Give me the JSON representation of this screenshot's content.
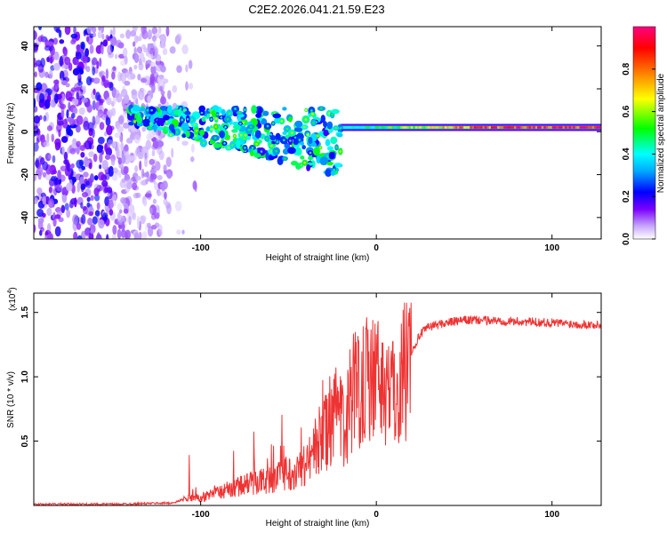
{
  "title": "C2E2.2026.041.21.59.E23",
  "chart_data": [
    {
      "type": "heatmap",
      "xlabel": "Height of straight line (km)",
      "ylabel": "Frequency (Hz)",
      "xlim": [
        -195,
        128
      ],
      "ylim": [
        -50,
        49
      ],
      "xticks": [
        -100,
        0,
        100
      ],
      "xtick_labels": [
        "-100",
        "0",
        "100"
      ],
      "yticks": [
        -40,
        -20,
        0,
        20,
        40
      ],
      "ytick_labels": [
        "-40",
        "-20",
        "0",
        "20",
        "40"
      ],
      "colorbar": {
        "label": "Normalized spectral amplitude",
        "range": [
          0,
          1
        ],
        "ticks": [
          0.0,
          0.2,
          0.4,
          0.6,
          0.8
        ],
        "tick_labels": [
          "0.0",
          "0.2",
          "0.4",
          "0.6",
          "0.8"
        ],
        "colormap": [
          "#ffffff",
          "#7b00ff",
          "#0000ff",
          "#00ffff",
          "#00ff00",
          "#ffff00",
          "#ff8000",
          "#ff0000",
          "#ff0080"
        ]
      },
      "features": [
        {
          "name": "diffuse noise",
          "x_range": [
            -195,
            -120
          ],
          "freq_range": [
            -50,
            49
          ],
          "amplitude": [
            0.05,
            0.25
          ]
        },
        {
          "name": "scattered band",
          "x_range": [
            -140,
            -20
          ],
          "freq_center": [
            5,
            -15
          ],
          "amplitude": [
            0.2,
            0.55
          ]
        },
        {
          "name": "stable tone",
          "x_range": [
            -20,
            128
          ],
          "freq": 2,
          "amplitude": [
            0.4,
            0.95
          ]
        }
      ]
    },
    {
      "type": "line",
      "title_exponent": "(x10",
      "exponent": "4",
      "title_exponent_close": ")",
      "xlabel": "Height of straight line (km)",
      "ylabel": "SNR (10 * v/v)",
      "xlim": [
        -195,
        128
      ],
      "ylim": [
        0,
        1.65
      ],
      "xticks": [
        -100,
        0,
        100
      ],
      "xtick_labels": [
        "-100",
        "0",
        "100"
      ],
      "yticks": [
        0.5,
        1.0,
        1.5
      ],
      "ytick_labels": [
        "0.5",
        "1.0",
        "1.5"
      ],
      "color": "#ee3333",
      "series": [
        {
          "name": "SNR",
          "x": [
            -195,
            -150,
            -115,
            -110,
            -100,
            -90,
            -80,
            -70,
            -60,
            -50,
            -40,
            -35,
            -30,
            -25,
            -22,
            -18,
            -15,
            -10,
            -5,
            0,
            5,
            10,
            15,
            20,
            25,
            30,
            40,
            50,
            60,
            80,
            100,
            128
          ],
          "values": [
            0.01,
            0.01,
            0.02,
            0.05,
            0.06,
            0.1,
            0.14,
            0.18,
            0.2,
            0.25,
            0.32,
            0.45,
            0.55,
            0.62,
            0.75,
            0.55,
            0.85,
            0.95,
            1.05,
            1.0,
            0.95,
            0.85,
            1.05,
            1.2,
            1.33,
            1.39,
            1.42,
            1.44,
            1.44,
            1.43,
            1.42,
            1.4
          ]
        }
      ]
    }
  ]
}
